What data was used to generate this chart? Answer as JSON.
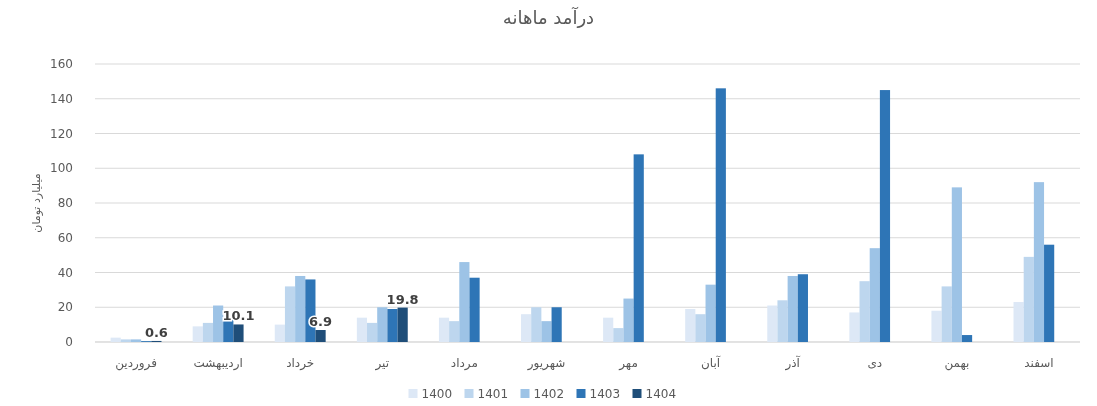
{
  "chart_data": {
    "type": "bar",
    "title": "درآمد ماهانه",
    "ylabel": "میلیارد تومان",
    "categories": [
      "فروردین",
      "اردیبهشت",
      "خرداد",
      "تیر",
      "مرداد",
      "شهریور",
      "مهر",
      "آبان",
      "آذر",
      "دی",
      "بهمن",
      "اسفند"
    ],
    "series": [
      {
        "name": "1400",
        "color": "#dde8f6",
        "values": [
          2.5,
          9,
          10,
          14,
          14,
          16,
          14,
          19,
          21,
          17,
          18,
          23
        ]
      },
      {
        "name": "1401",
        "color": "#bdd6ee",
        "values": [
          1.5,
          11,
          32,
          11,
          12,
          20,
          8,
          16,
          24,
          35,
          32,
          49
        ]
      },
      {
        "name": "1402",
        "color": "#9dc3e6",
        "values": [
          1.5,
          21,
          38,
          20,
          46,
          12,
          25,
          33,
          38,
          54,
          89,
          92
        ]
      },
      {
        "name": "1403",
        "color": "#2e75b6",
        "values": [
          0.5,
          14,
          36,
          19,
          37,
          20,
          108,
          146,
          39,
          145,
          4,
          56
        ]
      },
      {
        "name": "1404",
        "color": "#1f4e79",
        "values": [
          0.6,
          10.1,
          6.9,
          19.8,
          null,
          null,
          null,
          null,
          null,
          null,
          null,
          null
        ],
        "value_labels": [
          "0.6",
          "10.1",
          "6.9",
          "19.8",
          null,
          null,
          null,
          null,
          null,
          null,
          null,
          null
        ]
      }
    ],
    "ylim": [
      0,
      160
    ],
    "yticks": [
      0,
      20,
      40,
      60,
      80,
      100,
      120,
      140,
      160
    ],
    "grid": "y",
    "legend": "bottom"
  }
}
